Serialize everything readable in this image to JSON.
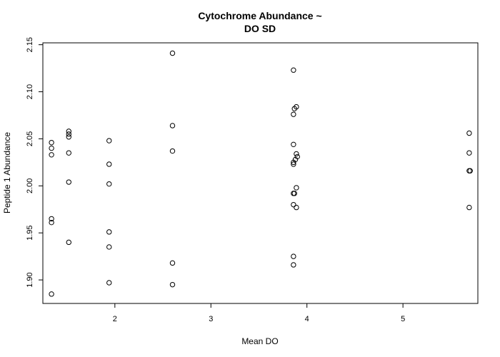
{
  "chart_data": {
    "type": "scatter",
    "title": [
      "Cytochrome Abundance ~",
      "DO SD"
    ],
    "xlabel": "Mean DO",
    "ylabel": "Peptide 1 Abundance",
    "xlim": [
      1.25,
      5.78
    ],
    "ylim": [
      1.875,
      2.152
    ],
    "x_ticks": [
      {
        "value": 2,
        "label": "2"
      },
      {
        "value": 3,
        "label": "3"
      },
      {
        "value": 4,
        "label": "4"
      },
      {
        "value": 5,
        "label": "5"
      }
    ],
    "y_ticks": [
      {
        "value": 1.9,
        "label": "1.90"
      },
      {
        "value": 1.95,
        "label": "1.95"
      },
      {
        "value": 2.0,
        "label": "2.00"
      },
      {
        "value": 2.05,
        "label": "2.05"
      },
      {
        "value": 2.1,
        "label": "2.10"
      },
      {
        "value": 2.15,
        "label": "2.15"
      }
    ],
    "marker": "open-circle",
    "marker_color": "#000000",
    "grid": false,
    "points": [
      {
        "x": 1.34,
        "y": 2.046
      },
      {
        "x": 1.34,
        "y": 2.04
      },
      {
        "x": 1.34,
        "y": 2.033
      },
      {
        "x": 1.34,
        "y": 1.965
      },
      {
        "x": 1.34,
        "y": 1.961
      },
      {
        "x": 1.34,
        "y": 1.885
      },
      {
        "x": 1.52,
        "y": 2.058
      },
      {
        "x": 1.52,
        "y": 2.055
      },
      {
        "x": 1.52,
        "y": 2.052
      },
      {
        "x": 1.52,
        "y": 2.035
      },
      {
        "x": 1.52,
        "y": 2.004
      },
      {
        "x": 1.52,
        "y": 1.94
      },
      {
        "x": 1.94,
        "y": 2.048
      },
      {
        "x": 1.94,
        "y": 2.023
      },
      {
        "x": 1.94,
        "y": 2.002
      },
      {
        "x": 1.94,
        "y": 1.951
      },
      {
        "x": 1.94,
        "y": 1.935
      },
      {
        "x": 1.94,
        "y": 1.897
      },
      {
        "x": 2.6,
        "y": 2.141
      },
      {
        "x": 2.6,
        "y": 2.064
      },
      {
        "x": 2.6,
        "y": 2.037
      },
      {
        "x": 2.6,
        "y": 1.918
      },
      {
        "x": 2.6,
        "y": 1.895
      },
      {
        "x": 3.86,
        "y": 2.123
      },
      {
        "x": 3.87,
        "y": 2.082
      },
      {
        "x": 3.89,
        "y": 2.084
      },
      {
        "x": 3.86,
        "y": 2.076
      },
      {
        "x": 3.86,
        "y": 2.044
      },
      {
        "x": 3.89,
        "y": 2.034
      },
      {
        "x": 3.9,
        "y": 2.031
      },
      {
        "x": 3.88,
        "y": 2.028
      },
      {
        "x": 3.86,
        "y": 2.025
      },
      {
        "x": 3.86,
        "y": 2.023
      },
      {
        "x": 3.89,
        "y": 1.998
      },
      {
        "x": 3.86,
        "y": 1.992
      },
      {
        "x": 3.87,
        "y": 1.992
      },
      {
        "x": 3.86,
        "y": 1.98
      },
      {
        "x": 3.89,
        "y": 1.977
      },
      {
        "x": 3.86,
        "y": 1.925
      },
      {
        "x": 3.86,
        "y": 1.916
      },
      {
        "x": 5.69,
        "y": 2.056
      },
      {
        "x": 5.69,
        "y": 2.035
      },
      {
        "x": 5.69,
        "y": 2.016
      },
      {
        "x": 5.7,
        "y": 2.016
      },
      {
        "x": 5.69,
        "y": 1.977
      }
    ]
  }
}
